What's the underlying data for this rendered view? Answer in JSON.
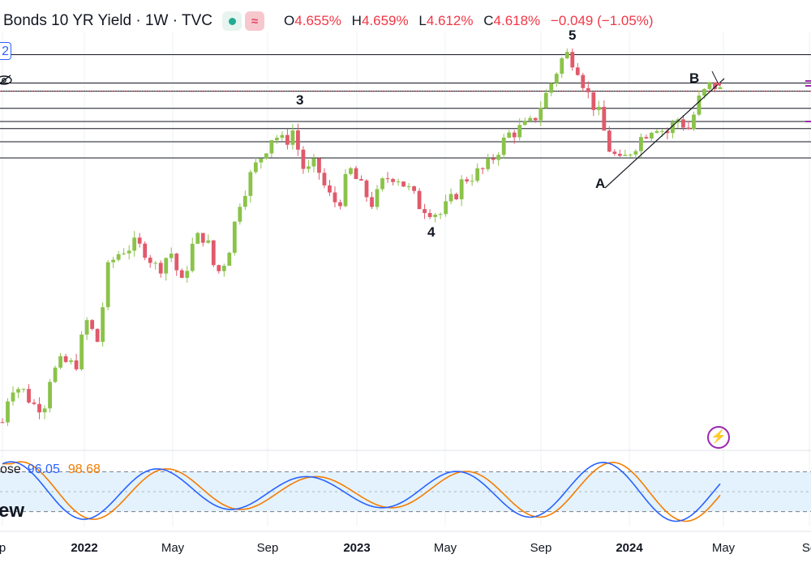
{
  "header": {
    "title": "Bonds 10 YR Yield · 1W · TVC",
    "open_label": "O",
    "open": "4.655%",
    "high_label": "H",
    "high": "4.659%",
    "low_label": "L",
    "low": "4.612%",
    "close_label": "C",
    "close": "4.618%",
    "change": "−0.049 (−1.05%)"
  },
  "left_badge": "2",
  "stoch": {
    "label": "ose",
    "k": "96.05",
    "d": "98.68",
    "k_color": "#2962ff",
    "d_color": "#f57c00",
    "band": [
      20,
      80
    ]
  },
  "watermark": "ew",
  "wave_labels": {
    "w3": "3",
    "w4": "4",
    "w5": "5",
    "wA": "A",
    "wB": "B"
  },
  "colors": {
    "up": "#8bc34a",
    "down": "#e05a6b",
    "level_line": "#131722",
    "price_line": "#e05a6b",
    "stoch_band": "#e3f2fd"
  },
  "icons": [
    "eye-off-icon",
    "lightning-icon"
  ],
  "chart_data": {
    "type": "candlestick",
    "timeframe": "1W",
    "x_tick_labels": [
      {
        "text": "p",
        "bold": false
      },
      {
        "text": "2022",
        "bold": true
      },
      {
        "text": "May",
        "bold": false
      },
      {
        "text": "Sep",
        "bold": false
      },
      {
        "text": "2023",
        "bold": true
      },
      {
        "text": "May",
        "bold": false
      },
      {
        "text": "Sep",
        "bold": false
      },
      {
        "text": "2024",
        "bold": true
      },
      {
        "text": "May",
        "bold": false
      },
      {
        "text": "Se",
        "bold": false
      }
    ],
    "last_close": 4.618,
    "close_path": [
      {
        "x": 0,
        "y": 1.35
      },
      {
        "x": 0.5,
        "y": 1.72
      },
      {
        "x": 1.2,
        "y": 1.68
      },
      {
        "x": 2.1,
        "y": 1.5
      },
      {
        "x": 2.7,
        "y": 1.55
      },
      {
        "x": 3.0,
        "y": 1.8
      },
      {
        "x": 3.8,
        "y": 1.95
      },
      {
        "x": 4.6,
        "y": 1.9
      },
      {
        "x": 5.3,
        "y": 2.35
      },
      {
        "x": 6.0,
        "y": 2.15
      },
      {
        "x": 6.7,
        "y": 2.9
      },
      {
        "x": 7.5,
        "y": 3.05
      },
      {
        "x": 8.3,
        "y": 3.1
      },
      {
        "x": 9.0,
        "y": 3.05
      },
      {
        "x": 9.8,
        "y": 2.85
      },
      {
        "x": 10.6,
        "y": 3.05
      },
      {
        "x": 11.3,
        "y": 2.7
      },
      {
        "x": 12.1,
        "y": 3.15
      },
      {
        "x": 12.8,
        "y": 3.2
      },
      {
        "x": 13.5,
        "y": 2.8
      },
      {
        "x": 14.2,
        "y": 3.0
      },
      {
        "x": 15.0,
        "y": 3.55
      },
      {
        "x": 15.7,
        "y": 3.8
      },
      {
        "x": 16.4,
        "y": 4.0
      },
      {
        "x": 17.1,
        "y": 4.2
      },
      {
        "x": 17.8,
        "y": 4.1
      },
      {
        "x": 18.3,
        "y": 4.24
      },
      {
        "x": 19.1,
        "y": 3.8
      },
      {
        "x": 19.8,
        "y": 3.9
      },
      {
        "x": 20.5,
        "y": 3.6
      },
      {
        "x": 21.2,
        "y": 3.5
      },
      {
        "x": 21.9,
        "y": 3.85
      },
      {
        "x": 22.7,
        "y": 3.65
      },
      {
        "x": 23.4,
        "y": 3.5
      },
      {
        "x": 24.1,
        "y": 3.75
      },
      {
        "x": 24.8,
        "y": 3.8
      },
      {
        "x": 25.6,
        "y": 3.65
      },
      {
        "x": 26.3,
        "y": 3.5
      },
      {
        "x": 27.0,
        "y": 3.45
      },
      {
        "x": 27.6,
        "y": 3.4
      },
      {
        "x": 28.4,
        "y": 3.55
      },
      {
        "x": 29.1,
        "y": 3.75
      },
      {
        "x": 29.8,
        "y": 3.8
      },
      {
        "x": 30.5,
        "y": 3.85
      },
      {
        "x": 31.3,
        "y": 4.05
      },
      {
        "x": 32.0,
        "y": 4.2
      },
      {
        "x": 32.7,
        "y": 4.25
      },
      {
        "x": 33.4,
        "y": 4.3
      },
      {
        "x": 34.2,
        "y": 4.55
      },
      {
        "x": 34.9,
        "y": 4.8
      },
      {
        "x": 35.5,
        "y": 5.0
      },
      {
        "x": 36.2,
        "y": 4.9
      },
      {
        "x": 36.9,
        "y": 4.6
      },
      {
        "x": 37.6,
        "y": 4.4
      },
      {
        "x": 38.3,
        "y": 4.05
      },
      {
        "x": 39.0,
        "y": 3.9
      },
      {
        "x": 39.7,
        "y": 4.05
      },
      {
        "x": 40.5,
        "y": 4.2
      },
      {
        "x": 41.2,
        "y": 4.3
      },
      {
        "x": 41.9,
        "y": 4.2
      },
      {
        "x": 42.6,
        "y": 4.35
      },
      {
        "x": 43.3,
        "y": 4.25
      },
      {
        "x": 44.0,
        "y": 4.55
      },
      {
        "x": 44.8,
        "y": 4.7
      },
      {
        "x": 45.3,
        "y": 4.62
      }
    ],
    "horizontal_levels": [
      4.98,
      4.7,
      4.62,
      4.45,
      4.32,
      4.25,
      4.12,
      3.96
    ],
    "y_range": [
      1.2,
      5.2
    ]
  }
}
